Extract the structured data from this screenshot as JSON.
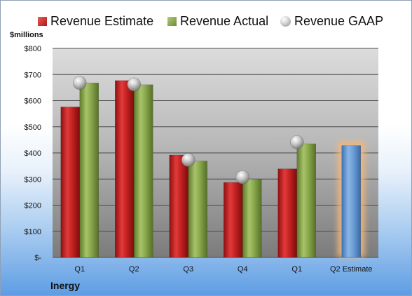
{
  "chart_data": {
    "type": "bar",
    "categories": [
      "Q1",
      "Q2",
      "Q3",
      "Q4",
      "Q1",
      "Q2 Estimate"
    ],
    "series": [
      {
        "name": "Revenue Estimate",
        "color": "#cc2222",
        "values": [
          576,
          677,
          392,
          287,
          339,
          null
        ]
      },
      {
        "name": "Revenue Actual",
        "color": "#88a84a",
        "values": [
          668,
          661,
          369,
          300,
          435,
          null
        ]
      },
      {
        "name": "Revenue GAAP",
        "color": "#bdbdbd",
        "marker": "sphere",
        "values": [
          668,
          662,
          373,
          307,
          441,
          null
        ]
      }
    ],
    "highlight": {
      "category": "Q2 Estimate",
      "value": 428,
      "color": "#6fa0d8",
      "glow": "#f5b77a"
    },
    "ylim": [
      0,
      800
    ],
    "yticks": [
      {
        "value": 0,
        "label": "$-"
      },
      {
        "value": 100,
        "label": "$100"
      },
      {
        "value": 200,
        "label": "$200"
      },
      {
        "value": 300,
        "label": "$300"
      },
      {
        "value": 400,
        "label": "$400"
      },
      {
        "value": 500,
        "label": "$500"
      },
      {
        "value": 600,
        "label": "$600"
      },
      {
        "value": 700,
        "label": "$700"
      },
      {
        "value": 800,
        "label": "$800"
      }
    ],
    "ylabel": "$millions",
    "company": "Inergy",
    "grid": true,
    "legend": "top"
  }
}
